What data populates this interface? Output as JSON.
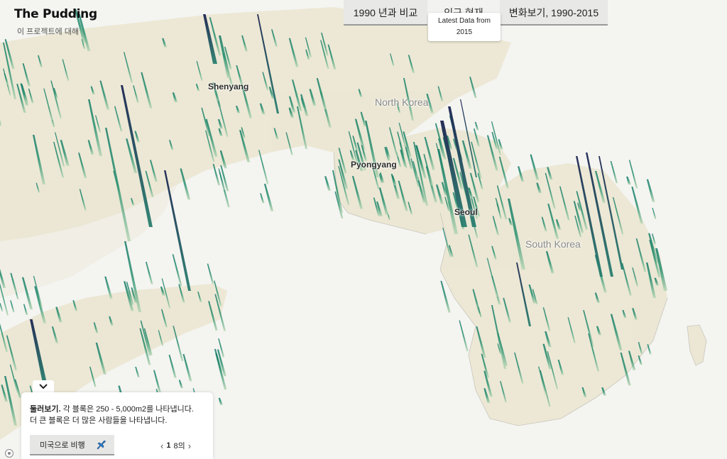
{
  "brand": {
    "logo": "The Pudding",
    "about": "이 프로젝트에 대해"
  },
  "tabs": [
    {
      "label": "1990 년과 비교",
      "active": false
    },
    {
      "label": "인구 현재",
      "active": true
    },
    {
      "label": "변화보기, 1990-2015",
      "active": false
    }
  ],
  "tooltip": {
    "line1": "Latest Data from",
    "line2": "2015"
  },
  "map_labels": {
    "shenyang": "Shenyang",
    "north_korea": "North Korea",
    "pyongyang": "Pyongyang",
    "seoul": "Seoul",
    "south_korea": "South Korea"
  },
  "panel": {
    "heading": "둘러보기.",
    "text1": " 각 블록은 250 - 5,000m2를 나타냅니다.",
    "text2": "더 큰 블록은 더 많은 사람들을 나타냅니다.",
    "fly_label": "미국으로 비행",
    "page_current": "1",
    "page_total": "8의"
  },
  "icons": {
    "collapse": "chevron-down-icon",
    "fly": "airplane-icon",
    "prev": "chevron-left-icon",
    "next": "chevron-right-icon"
  },
  "colors": {
    "land": "#ece8d4",
    "spike_light": "#1f8a6a",
    "spike_dark": "#1c2b5a",
    "water": "#f4f4f1"
  }
}
